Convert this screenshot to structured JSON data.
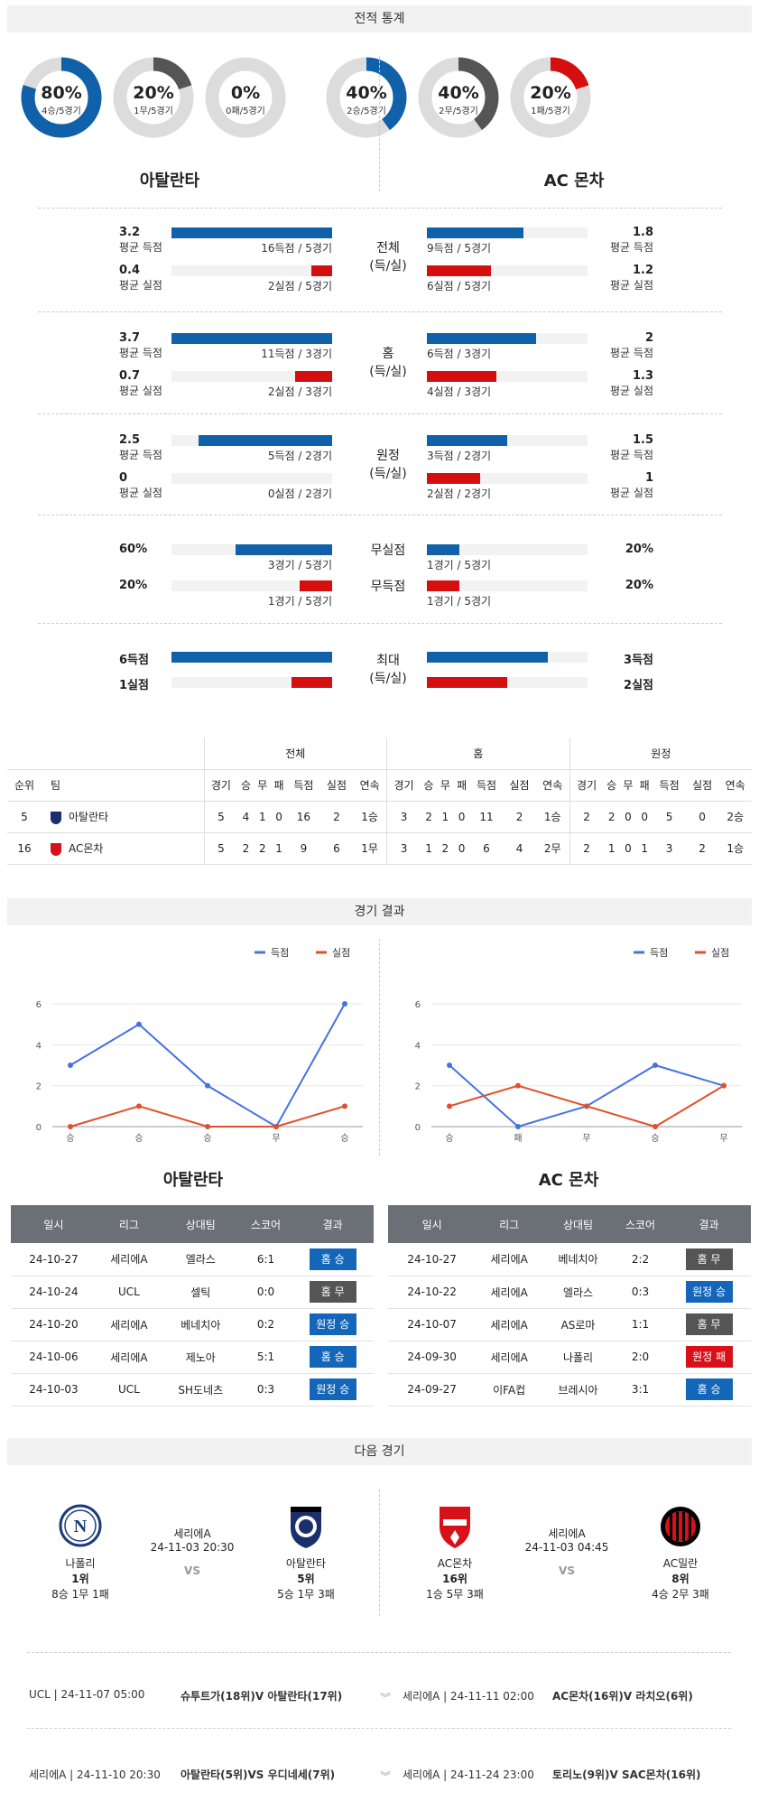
{
  "section_titles": {
    "stats": "전적 통계",
    "results": "경기 결과",
    "next": "다음 경기"
  },
  "teams": {
    "home": "아탈란타",
    "away": "AC 몬차"
  },
  "donuts": [
    {
      "pct": "80%",
      "sub": "4승/5경기",
      "value": 0.8,
      "color": "#1060aa"
    },
    {
      "pct": "20%",
      "sub": "1무/5경기",
      "value": 0.2,
      "color": "#555555"
    },
    {
      "pct": "0%",
      "sub": "0패/5경기",
      "value": 0.0,
      "color": "#d50f10"
    },
    {
      "pct": "40%",
      "sub": "2승/5경기",
      "value": 0.4,
      "color": "#1060aa"
    },
    {
      "pct": "40%",
      "sub": "2무/5경기",
      "value": 0.4,
      "color": "#555555"
    },
    {
      "pct": "20%",
      "sub": "1패/5경기",
      "value": 0.2,
      "color": "#d50f10"
    }
  ],
  "stat_groups": [
    {
      "cat": "전체",
      "cat2": "(득/실)",
      "rows": [
        {
          "lv": "3.2",
          "ll": "평균 득점",
          "lt": "16득점 / 5경기",
          "lf": 1.0,
          "color": "blue",
          "rv": "1.8",
          "rl": "평균 득점",
          "rt": "9득점 / 5경기",
          "rf": 0.6
        },
        {
          "lv": "0.4",
          "ll": "평균 실점",
          "lt": "2실점 / 5경기",
          "lf": 0.13,
          "color": "red",
          "rv": "1.2",
          "rl": "평균 실점",
          "rt": "6실점 / 5경기",
          "rf": 0.4
        }
      ]
    },
    {
      "cat": "홈",
      "cat2": "(득/실)",
      "rows": [
        {
          "lv": "3.7",
          "ll": "평균 득점",
          "lt": "11득점 / 3경기",
          "lf": 1.0,
          "color": "blue",
          "rv": "2",
          "rl": "평균 득점",
          "rt": "6득점 / 3경기",
          "rf": 0.68
        },
        {
          "lv": "0.7",
          "ll": "평균 실점",
          "lt": "2실점 / 3경기",
          "lf": 0.23,
          "color": "red",
          "rv": "1.3",
          "rl": "평균 실점",
          "rt": "4실점 / 3경기",
          "rf": 0.43
        }
      ]
    },
    {
      "cat": "원정",
      "cat2": "(득/실)",
      "rows": [
        {
          "lv": "2.5",
          "ll": "평균 득점",
          "lt": "5득점 / 2경기",
          "lf": 0.83,
          "color": "blue",
          "rv": "1.5",
          "rl": "평균 득점",
          "rt": "3득점 / 2경기",
          "rf": 0.5
        },
        {
          "lv": "0",
          "ll": "평균 실점",
          "lt": "0실점 / 2경기",
          "lf": 0.0,
          "color": "red",
          "rv": "1",
          "rl": "평균 실점",
          "rt": "2실점 / 2경기",
          "rf": 0.33
        }
      ]
    }
  ],
  "nil_group": [
    {
      "cat": "무실점",
      "lv": "60%",
      "lt": "3경기 / 5경기",
      "lf": 0.6,
      "color": "blue",
      "rv": "20%",
      "rt": "1경기 / 5경기",
      "rf": 0.2
    },
    {
      "cat": "무득점",
      "lv": "20%",
      "lt": "1경기 / 5경기",
      "lf": 0.2,
      "color": "red",
      "rv": "20%",
      "rt": "1경기 / 5경기",
      "rf": 0.2
    }
  ],
  "max_group": {
    "cat": "최대",
    "cat2": "(득/실)",
    "rows": [
      {
        "lv": "6득점",
        "lf": 1.0,
        "color": "blue",
        "rv": "3득점",
        "rf": 0.75
      },
      {
        "lv": "1실점",
        "lf": 0.25,
        "color": "red",
        "rv": "2실점",
        "rf": 0.5
      }
    ]
  },
  "standings": {
    "group_headers": [
      "전체",
      "홈",
      "원정"
    ],
    "col_rank": "순위",
    "col_team": "팀",
    "cols": [
      "경기",
      "승",
      "무",
      "패",
      "득점",
      "실점",
      "연속"
    ],
    "rows": [
      {
        "rank": "5",
        "team": "아탈란타",
        "logo": "atalanta-logo",
        "all": [
          "5",
          "4",
          "1",
          "0",
          "16",
          "2",
          "1승"
        ],
        "home": [
          "3",
          "2",
          "1",
          "0",
          "11",
          "2",
          "1승"
        ],
        "away": [
          "2",
          "2",
          "0",
          "0",
          "5",
          "0",
          "2승"
        ]
      },
      {
        "rank": "16",
        "team": "AC몬차",
        "logo": "monza-logo",
        "all": [
          "5",
          "2",
          "2",
          "1",
          "9",
          "6",
          "1무"
        ],
        "home": [
          "3",
          "1",
          "2",
          "0",
          "6",
          "4",
          "2무"
        ],
        "away": [
          "2",
          "1",
          "0",
          "1",
          "3",
          "2",
          "1승"
        ]
      }
    ]
  },
  "chart_data": [
    {
      "type": "line",
      "categories": [
        "승",
        "승",
        "승",
        "무",
        "승"
      ],
      "series": [
        {
          "name": "득점",
          "values": [
            3,
            5,
            2,
            0,
            6
          ],
          "color": "#4472e3"
        },
        {
          "name": "실점",
          "values": [
            0,
            1,
            0,
            0,
            1
          ],
          "color": "#e0502d"
        }
      ],
      "ylim": [
        0,
        6
      ],
      "yticks": [
        "0",
        "2",
        "4",
        "6"
      ],
      "legend": "top-right"
    },
    {
      "type": "line",
      "categories": [
        "승",
        "패",
        "무",
        "승",
        "무"
      ],
      "series": [
        {
          "name": "득점",
          "values": [
            3,
            0,
            1,
            3,
            2
          ],
          "color": "#4472e3"
        },
        {
          "name": "실점",
          "values": [
            1,
            2,
            1,
            0,
            2
          ],
          "color": "#e0502d"
        }
      ],
      "ylim": [
        0,
        6
      ],
      "yticks": [
        "0",
        "2",
        "4",
        "6"
      ],
      "legend": "top-right"
    }
  ],
  "results": {
    "headers": [
      "일시",
      "리그",
      "상대팀",
      "스코어",
      "결과"
    ],
    "home": [
      {
        "date": "24-10-27",
        "league": "세리에A",
        "opp": "엘라스",
        "score": "6:1",
        "result": "홈 승",
        "rc": "b-blue"
      },
      {
        "date": "24-10-24",
        "league": "UCL",
        "opp": "셀틱",
        "score": "0:0",
        "result": "홈 무",
        "rc": "b-gray"
      },
      {
        "date": "24-10-20",
        "league": "세리에A",
        "opp": "베네치아",
        "score": "0:2",
        "result": "원정 승",
        "rc": "b-blue"
      },
      {
        "date": "24-10-06",
        "league": "세리에A",
        "opp": "제노아",
        "score": "5:1",
        "result": "홈 승",
        "rc": "b-blue"
      },
      {
        "date": "24-10-03",
        "league": "UCL",
        "opp": "SH도네츠",
        "score": "0:3",
        "result": "원정 승",
        "rc": "b-blue"
      }
    ],
    "away": [
      {
        "date": "24-10-27",
        "league": "세리에A",
        "opp": "베네치아",
        "score": "2:2",
        "result": "홈 무",
        "rc": "b-gray"
      },
      {
        "date": "24-10-22",
        "league": "세리에A",
        "opp": "엘라스",
        "score": "0:3",
        "result": "원정 승",
        "rc": "b-blue"
      },
      {
        "date": "24-10-07",
        "league": "세리에A",
        "opp": "AS로마",
        "score": "1:1",
        "result": "홈 무",
        "rc": "b-gray"
      },
      {
        "date": "24-09-30",
        "league": "세리에A",
        "opp": "나폴리",
        "score": "2:0",
        "result": "원정 패",
        "rc": "b-red"
      },
      {
        "date": "24-09-27",
        "league": "이FA컵",
        "opp": "브레시아",
        "score": "3:1",
        "result": "홈 승",
        "rc": "b-blue"
      }
    ]
  },
  "next": {
    "left": {
      "t1": "나폴리",
      "t1_rank": "1위",
      "t1_rec": "8승 1무 1패",
      "league": "세리에A",
      "dt": "24-11-03 20:30",
      "vs": "VS",
      "t2": "아탈란타",
      "t2_rank": "5위",
      "t2_rec": "5승 1무 3패"
    },
    "right": {
      "t1": "AC몬차",
      "t1_rank": "16위",
      "t1_rec": "1승 5무 3패",
      "league": "세리에A",
      "dt": "24-11-03 04:45",
      "vs": "VS",
      "t2": "AC밀란",
      "t2_rank": "8위",
      "t2_rec": "4승 2무 3패"
    }
  },
  "upcoming": [
    {
      "l_info": "UCL | 24-11-07 05:00",
      "l_match": "슈투트가(18위)V 아탈란타(17위)",
      "r_info": "세리에A | 24-11-11 02:00",
      "r_match": "AC몬차(16위)V 라치오(6위)"
    },
    {
      "l_info": "세리에A | 24-11-10 20:30",
      "l_match": "아탈란타(5위)VS 우디네세(7위)",
      "r_info": "세리에A | 24-11-24 23:00",
      "r_match": "토리노(9위)V SAC몬차(16위)"
    }
  ]
}
